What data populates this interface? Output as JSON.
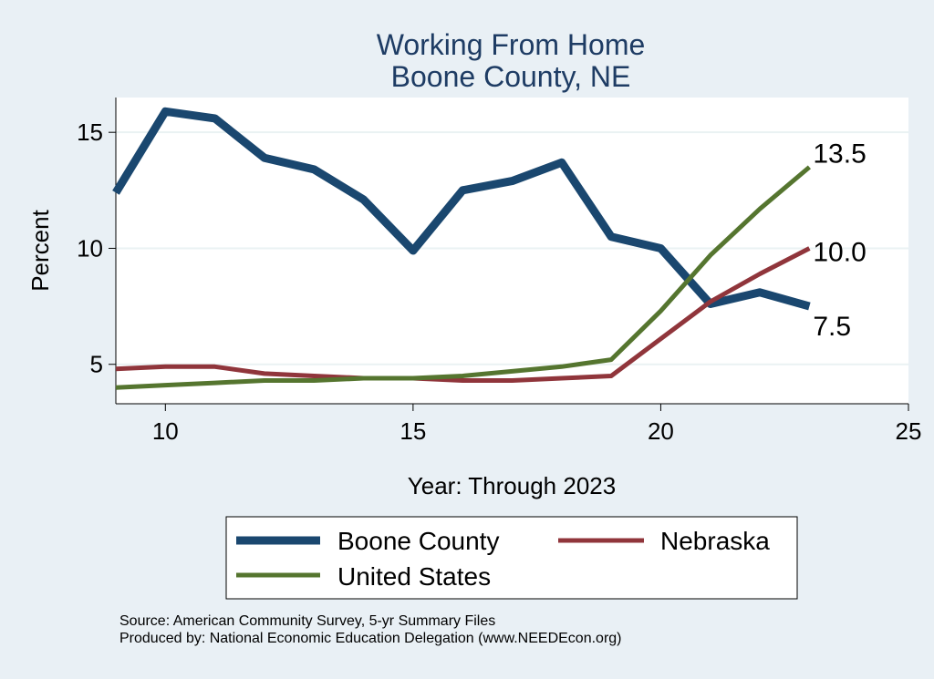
{
  "chart_data": {
    "type": "line",
    "title": "Working From Home",
    "subtitle": "Boone County, NE",
    "xlabel": "Year: Through 2023",
    "ylabel": "Percent",
    "xlim": [
      9,
      25
    ],
    "ylim": [
      3.3,
      16.5
    ],
    "xticks": [
      10,
      15,
      20,
      25
    ],
    "yticks": [
      5,
      10,
      15
    ],
    "grid": true,
    "legend_position": "bottom",
    "series": [
      {
        "name": "Boone County",
        "color": "#1a476f",
        "x": [
          9,
          10,
          11,
          12,
          13,
          14,
          15,
          16,
          17,
          18,
          19,
          20,
          21,
          22,
          23
        ],
        "values": [
          12.4,
          15.9,
          15.6,
          13.9,
          13.4,
          12.1,
          9.9,
          12.5,
          12.9,
          13.7,
          10.5,
          10.0,
          7.6,
          8.1,
          7.5
        ]
      },
      {
        "name": "Nebraska",
        "color": "#90353b",
        "x": [
          9,
          10,
          11,
          12,
          13,
          14,
          15,
          16,
          17,
          18,
          19,
          20,
          21,
          22,
          23
        ],
        "values": [
          4.8,
          4.9,
          4.9,
          4.6,
          4.5,
          4.4,
          4.4,
          4.3,
          4.3,
          4.4,
          4.5,
          6.1,
          7.7,
          8.9,
          10.0
        ]
      },
      {
        "name": "United States",
        "color": "#55752f",
        "x": [
          9,
          10,
          11,
          12,
          13,
          14,
          15,
          16,
          17,
          18,
          19,
          20,
          21,
          22,
          23
        ],
        "values": [
          4.0,
          4.1,
          4.2,
          4.3,
          4.3,
          4.4,
          4.4,
          4.5,
          4.7,
          4.9,
          5.2,
          7.3,
          9.7,
          11.7,
          13.5
        ]
      }
    ],
    "end_labels": [
      "13.5",
      "10.0",
      "7.5"
    ],
    "source": "Source: American Community Survey, 5-yr Summary Files",
    "produced_by": "Produced by: National Economic Education Delegation (www.NEEDEcon.org)"
  }
}
